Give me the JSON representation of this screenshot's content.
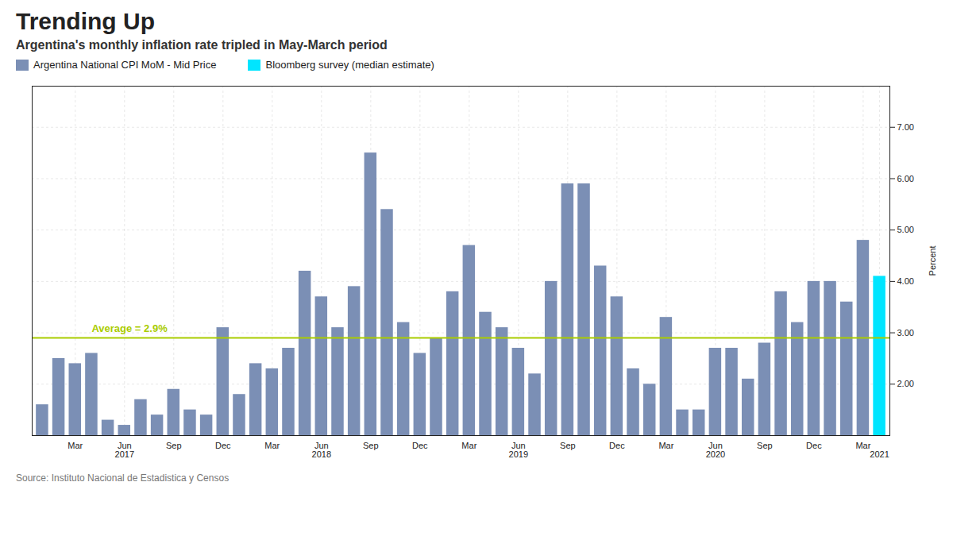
{
  "chart_data": {
    "type": "bar",
    "title": "Trending Up",
    "subtitle": "Argentina's monthly inflation rate tripled in May-March period",
    "source": "Source: Instituto Nacional de Estadistica y Censos",
    "ylabel": "Percent",
    "categories": [
      null,
      null,
      "Mar",
      null,
      null,
      "Jun\n2017",
      null,
      null,
      "Sep",
      null,
      null,
      "Dec",
      null,
      null,
      "Mar",
      null,
      null,
      "Jun\n2018",
      null,
      null,
      "Sep",
      null,
      null,
      "Dec",
      null,
      null,
      "Mar",
      null,
      null,
      "Jun\n2019",
      null,
      null,
      "Sep",
      null,
      null,
      "Dec",
      null,
      null,
      "Mar",
      null,
      null,
      "Jun\n2020",
      null,
      null,
      "Sep",
      null,
      null,
      "Dec",
      null,
      null,
      "Mar",
      "\n2021"
    ],
    "series": [
      {
        "name": "Argentina National CPI MoM - Mid Price",
        "color": "#7b8fb5",
        "values": [
          1.6,
          2.5,
          2.4,
          2.6,
          1.3,
          1.2,
          1.7,
          1.4,
          1.9,
          1.5,
          1.4,
          3.1,
          1.8,
          2.4,
          2.3,
          2.7,
          4.2,
          3.7,
          3.1,
          3.9,
          6.5,
          5.4,
          3.2,
          2.6,
          2.9,
          3.8,
          4.7,
          3.4,
          3.1,
          2.7,
          2.2,
          4.0,
          5.9,
          5.9,
          4.3,
          3.7,
          2.3,
          2.0,
          3.3,
          1.5,
          1.5,
          2.7,
          2.7,
          2.1,
          2.8,
          3.8,
          3.2,
          4.0,
          4.0,
          3.6,
          4.8,
          null
        ]
      },
      {
        "name": "Bloomberg survey (median estimate)",
        "color": "#00e5ff",
        "values": [
          null,
          null,
          null,
          null,
          null,
          null,
          null,
          null,
          null,
          null,
          null,
          null,
          null,
          null,
          null,
          null,
          null,
          null,
          null,
          null,
          null,
          null,
          null,
          null,
          null,
          null,
          null,
          null,
          null,
          null,
          null,
          null,
          null,
          null,
          null,
          null,
          null,
          null,
          null,
          null,
          null,
          null,
          null,
          null,
          null,
          null,
          null,
          null,
          null,
          null,
          null,
          4.1
        ]
      }
    ],
    "annotations": [
      {
        "type": "hline",
        "y": 2.9,
        "text": "Average = 2.9%",
        "color": "#aacc00"
      }
    ],
    "ylim": [
      1.0,
      7.8
    ],
    "yticks": [
      {
        "value": 2.0,
        "label": "2.00"
      },
      {
        "value": 3.0,
        "label": "3.00"
      },
      {
        "value": 4.0,
        "label": "4.00"
      },
      {
        "value": 5.0,
        "label": "5.00"
      },
      {
        "value": 6.0,
        "label": "6.00"
      },
      {
        "value": 7.0,
        "label": "7.00"
      }
    ],
    "grid": true,
    "legend": "upper left"
  }
}
